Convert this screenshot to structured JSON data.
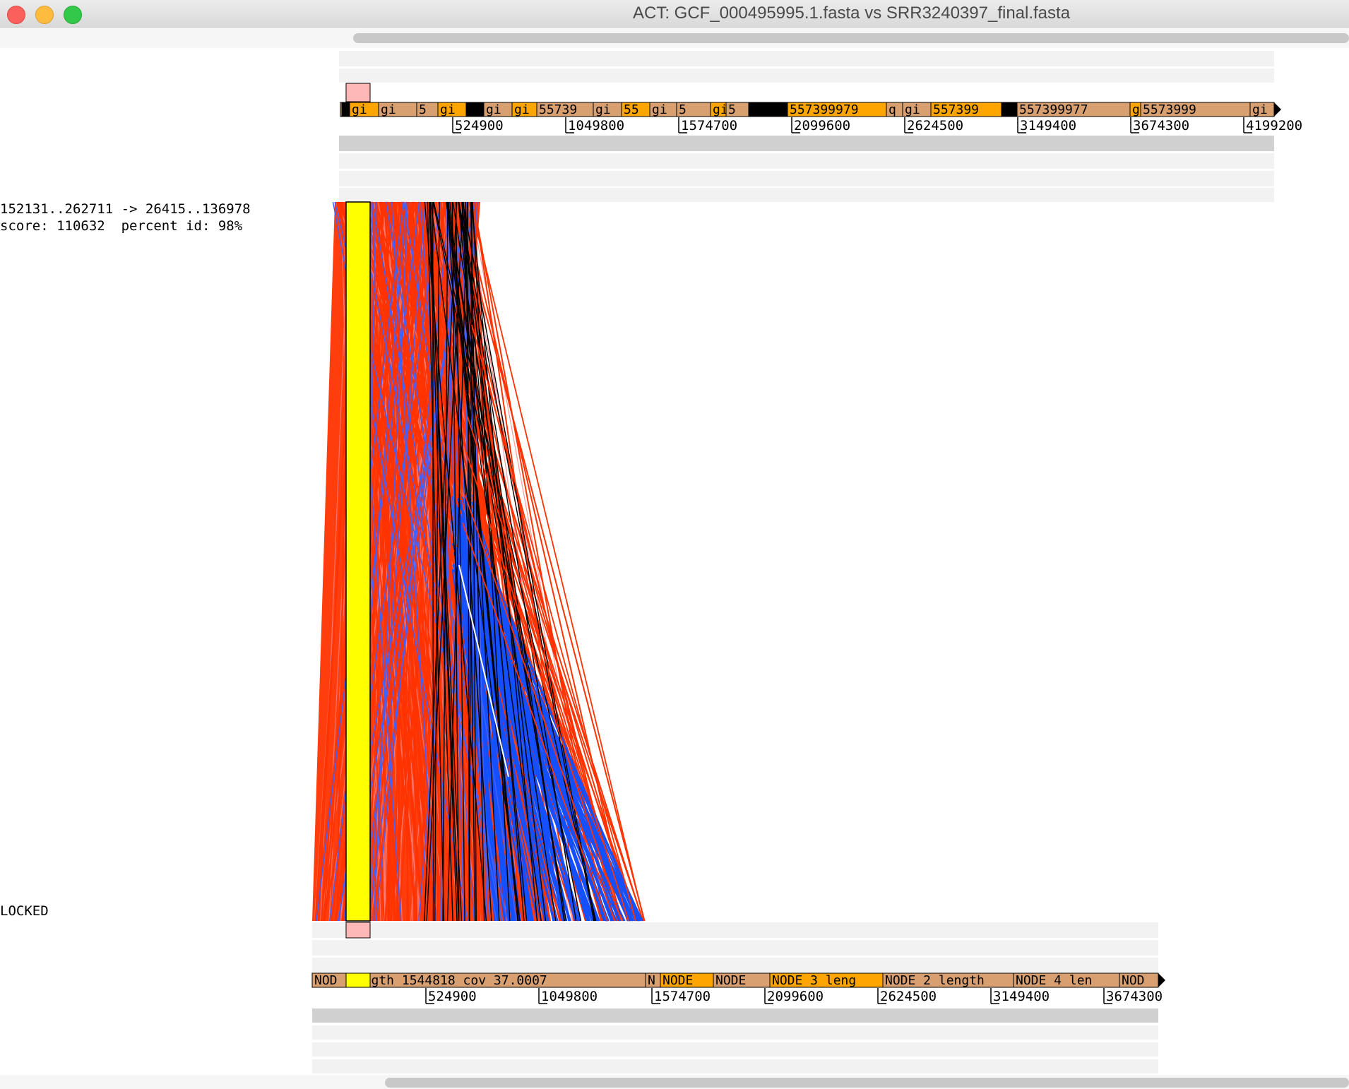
{
  "window": {
    "title": "ACT: GCF_000495995.1.fasta vs SRR3240397_final.fasta"
  },
  "info": {
    "match_range": "152131..262711 -> 26415..136978",
    "score_line": "score: 110632  percent id: 98%",
    "lock_status": "LOCKED"
  },
  "top_sequence": {
    "ticks": [
      "524900",
      "1049800",
      "1574700",
      "2099600",
      "2624500",
      "3149400",
      "3674300",
      "4199200"
    ],
    "feature_labels": [
      "gi",
      "gi",
      "gi",
      "5",
      "gi",
      "gi",
      "gi",
      "gi",
      "55739",
      "gi",
      "55",
      "gi",
      "5",
      "gi",
      "5",
      "gi",
      "557399979",
      "q",
      "gi",
      "557399",
      "gi",
      "557399977",
      "gi",
      "5573999",
      "gi"
    ]
  },
  "bottom_sequence": {
    "ticks": [
      "524900",
      "1049800",
      "1574700",
      "2099600",
      "2624500",
      "3149400",
      "3674300"
    ],
    "feature_labels": [
      "NOD",
      "length 1544818  cov 37.0007",
      "N",
      "NODE",
      "NODE",
      "NODE 3 leng",
      "NODE 2 length",
      "NODE 4 len",
      "NOD"
    ]
  },
  "colors": {
    "forward_match": "#ff3300",
    "reverse_match": "#1450ff",
    "selected_match": "#ffff00",
    "feature_a": "#d8a070",
    "feature_b": "#ffa500",
    "selection_box": "#ffb8b8"
  }
}
